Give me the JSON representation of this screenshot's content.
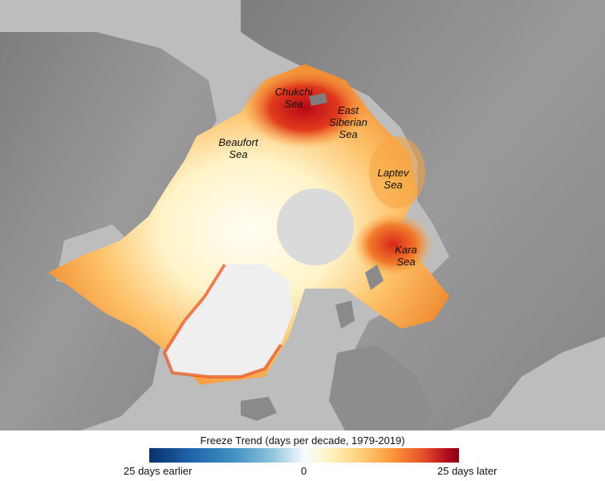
{
  "labels": {
    "chukchi": "Chukchi\nSea",
    "east_siberian": "East\nSiberian\nSea",
    "beaufort": "Beaufort\nSea",
    "laptev": "Laptev\nSea",
    "kara": "Kara\nSea"
  },
  "legend": {
    "title": "Freeze Trend (days per decade, 1979-2019)",
    "left_label": "25 days earlier",
    "center_label": "0",
    "right_label": "25 days later"
  },
  "colors": {
    "land": "#8f8f8f",
    "ocean": "#b9b9b9",
    "greenland": "#ededed",
    "pole_hole": "#dcdcdc",
    "trend_no_change": "#fffbe8",
    "trend_mild_later": "#fde39a",
    "trend_moderate_later": "#f9a640",
    "trend_strong_later": "#e84a1f",
    "trend_max_later": "#b80818"
  }
}
